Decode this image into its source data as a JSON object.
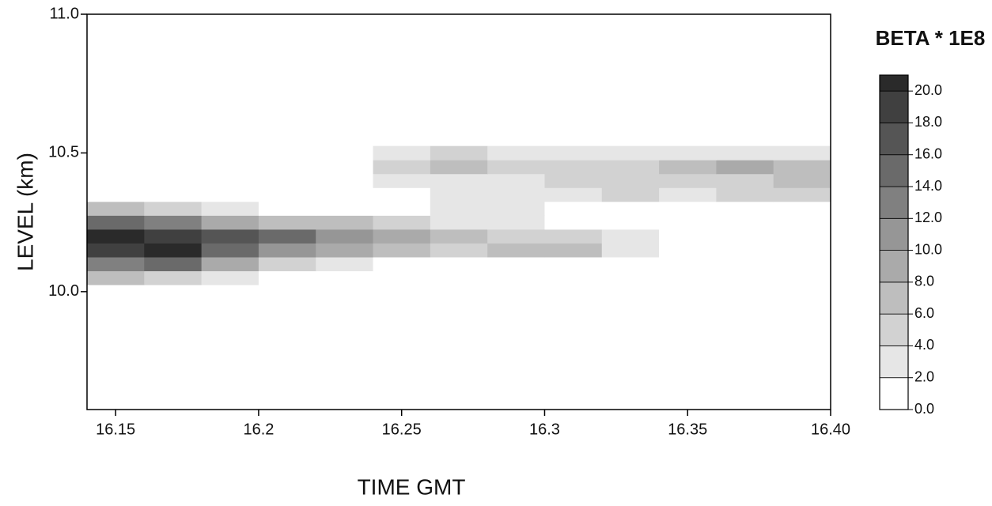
{
  "chart_data": {
    "type": "heatmap",
    "title": "BETA * 1E8",
    "x_label": "TIME GMT",
    "y_label": "LEVEL (km)",
    "xlim": [
      16.14,
      16.4
    ],
    "ylim": [
      9.575,
      11.0
    ],
    "xticks": [
      16.15,
      16.2,
      16.25,
      16.3,
      16.35,
      {
        "value": 16.4,
        "label": "16.40"
      }
    ],
    "yticks": [
      {
        "value": 10.0,
        "label": "10.0"
      },
      10.5,
      {
        "value": 11.0,
        "label": "11.0"
      }
    ],
    "x": [
      16.15,
      16.17,
      16.19,
      16.21,
      16.23,
      16.25,
      16.27,
      16.29,
      16.31,
      16.33,
      16.35,
      16.37,
      16.39
    ],
    "y": [
      10.05,
      10.1,
      10.15,
      10.2,
      10.25,
      10.3,
      10.35,
      10.4,
      10.45,
      10.5
    ],
    "z": [
      [
        6,
        4,
        2,
        0,
        0,
        0,
        0,
        0,
        0,
        0,
        0,
        0,
        0
      ],
      [
        12,
        14,
        8,
        4,
        2,
        0,
        0,
        0,
        0,
        0,
        0,
        0,
        0
      ],
      [
        18,
        20,
        14,
        10,
        8,
        6,
        4,
        6,
        6,
        2,
        0,
        0,
        0
      ],
      [
        20,
        18,
        16,
        14,
        10,
        8,
        6,
        4,
        4,
        2,
        0,
        0,
        0
      ],
      [
        14,
        12,
        8,
        6,
        6,
        4,
        2,
        2,
        0,
        0,
        0,
        0,
        0
      ],
      [
        6,
        4,
        2,
        0,
        0,
        0,
        2,
        2,
        0,
        0,
        0,
        0,
        0
      ],
      [
        0,
        0,
        0,
        0,
        0,
        0,
        2,
        2,
        2,
        4,
        2,
        4,
        4
      ],
      [
        0,
        0,
        0,
        0,
        0,
        2,
        2,
        2,
        4,
        4,
        4,
        4,
        6
      ],
      [
        0,
        0,
        0,
        0,
        0,
        4,
        6,
        4,
        4,
        4,
        6,
        8,
        6
      ],
      [
        0,
        0,
        0,
        0,
        0,
        2,
        4,
        2,
        2,
        2,
        2,
        2,
        2
      ]
    ],
    "clim": [
      0,
      21
    ],
    "cticks": [
      {
        "value": 0,
        "label": "0.0"
      },
      {
        "value": 2,
        "label": "2.0"
      },
      {
        "value": 4,
        "label": "4.0"
      },
      {
        "value": 6,
        "label": "6.0"
      },
      {
        "value": 8,
        "label": "8.0"
      },
      {
        "value": 10,
        "label": "10.0"
      },
      {
        "value": 12,
        "label": "12.0"
      },
      {
        "value": 14,
        "label": "14.0"
      },
      {
        "value": 16,
        "label": "16.0"
      },
      {
        "value": 18,
        "label": "18.0"
      },
      {
        "value": 20,
        "label": "20.0"
      }
    ],
    "colors": [
      "#ffffff",
      "#e6e6e6",
      "#d2d2d2",
      "#bebebe",
      "#aaaaaa",
      "#969696",
      "#808080",
      "#6a6a6a",
      "#555555",
      "#404040",
      "#2a2a2a"
    ]
  }
}
